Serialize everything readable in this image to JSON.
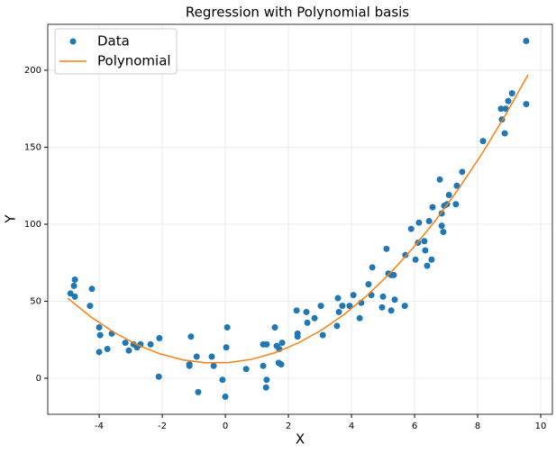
{
  "chart_data": {
    "type": "scatter",
    "title": "Regression with Polynomial basis",
    "x_label": "X",
    "y_label": "Y",
    "xlim": [
      -5.63,
      10.37
    ],
    "ylim": [
      -23.4,
      229.8
    ],
    "xticks": [
      -4,
      -2,
      0,
      2,
      4,
      6,
      8,
      10
    ],
    "yticks": [
      0,
      50,
      100,
      150,
      200
    ],
    "grid": true,
    "legend": "upper left",
    "series": [
      {
        "name": "Data",
        "type": "scatter",
        "color": "#1f77b4",
        "x": [
          -4.91,
          -4.8,
          -4.77,
          -4.77,
          -4.29,
          -4.23,
          -4,
          -3.97,
          -4,
          -3.74,
          -3.6,
          -3.17,
          -3.06,
          -2.91,
          -2.8,
          -2.69,
          -2.37,
          -2.11,
          -2.09,
          -1.14,
          -1.14,
          -1.09,
          -0.91,
          -0.86,
          -0.43,
          -0.37,
          -0.09,
          0,
          0.03,
          0.06,
          0.66,
          1.2,
          1.2,
          1.31,
          1.31,
          1.29,
          1.57,
          1.63,
          1.69,
          1.71,
          1.77,
          1.8,
          2.26,
          2.29,
          2.29,
          2.57,
          2.6,
          2.83,
          3.03,
          3.09,
          3.54,
          3.57,
          3.6,
          3.71,
          3.94,
          4.06,
          4.26,
          4.31,
          4.54,
          4.63,
          4.66,
          4.97,
          5,
          5.11,
          5.17,
          5.26,
          5.26,
          5.34,
          5.37,
          5.69,
          5.71,
          5.89,
          6.03,
          6.11,
          6.14,
          6.31,
          6.34,
          6.4,
          6.46,
          6.54,
          6.57,
          6.8,
          6.86,
          6.86,
          6.91,
          6.94,
          7.03,
          7.09,
          7.31,
          7.34,
          7.51,
          8.17,
          8.74,
          8.77,
          8.86,
          8.89,
          8.97,
          9.09,
          9.54,
          9.54
        ],
        "values": [
          55,
          60,
          64,
          53,
          47,
          58,
          33,
          28,
          17,
          19,
          29,
          23,
          18,
          22,
          20,
          22,
          22,
          1,
          26,
          9,
          8,
          27,
          14,
          -9,
          14,
          8,
          -1,
          -12,
          20,
          33,
          6,
          8,
          22,
          22,
          -1,
          -6,
          33,
          21,
          10,
          19,
          9,
          23,
          44,
          29,
          27,
          43,
          36,
          39,
          47,
          28,
          34,
          52,
          43,
          47,
          47,
          54,
          39,
          49,
          61,
          54,
          72,
          46,
          53,
          84,
          68,
          44,
          67,
          67,
          51,
          47,
          80,
          97,
          77,
          88,
          101,
          89,
          83,
          73,
          102,
          77,
          111,
          129,
          99,
          107,
          95,
          112,
          113,
          119,
          113,
          125,
          134,
          154,
          175,
          168,
          159,
          175,
          180,
          185,
          219,
          178
        ]
      },
      {
        "name": "Polynomial",
        "type": "line",
        "color": "#ff7f0e",
        "x": [
          -5,
          -4.27,
          -3.54,
          -2.81,
          -2.08,
          -1.35,
          -0.62,
          0.11,
          0.84,
          1.57,
          2.3,
          3.03,
          3.76,
          4.49,
          5.22,
          5.95,
          6.68,
          7.41,
          8.14,
          8.87,
          9.6
        ],
        "values": [
          52,
          39.9,
          29.9,
          21.9,
          15.9,
          11.9,
          10,
          10.2,
          12.3,
          16.5,
          22.8,
          31,
          41.3,
          53.7,
          68.1,
          84.5,
          102.9,
          123.4,
          145.9,
          170.5,
          197.1
        ]
      }
    ]
  }
}
